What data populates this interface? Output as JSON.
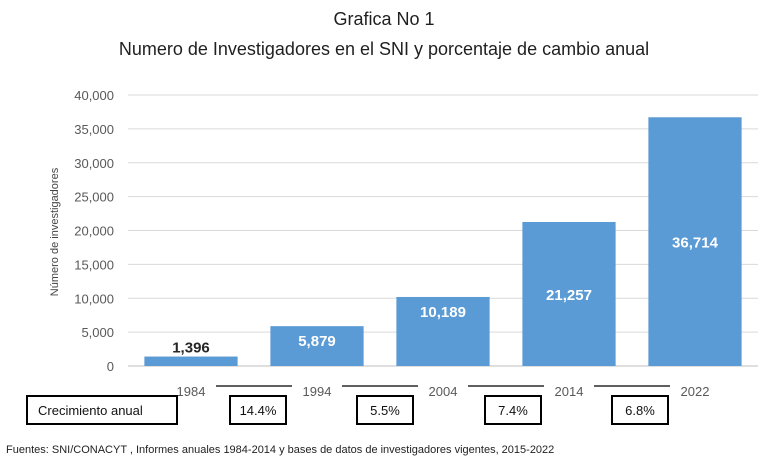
{
  "chart_data": {
    "type": "bar",
    "title": "Grafica No 1",
    "subtitle": "Numero de Investigadores en el SNI  y porcentaje de cambio anual",
    "xlabel": "",
    "ylabel": "Número de investigadores",
    "categories": [
      "1984",
      "1994",
      "2004",
      "2014",
      "2022"
    ],
    "values": [
      1396,
      5879,
      10189,
      21257,
      36714
    ],
    "data_labels": [
      "1,396",
      "5,879",
      "10,189",
      "21,257",
      "36,714"
    ],
    "ylim": [
      0,
      40000
    ],
    "yticks": [
      0,
      5000,
      10000,
      15000,
      20000,
      25000,
      30000,
      35000,
      40000
    ],
    "ytick_labels": [
      "0",
      "5,000",
      "10,000",
      "15,000",
      "20,000",
      "25,000",
      "30,000",
      "35,000",
      "40,000"
    ],
    "grid": true,
    "legend": "none",
    "bar_color": "#5b9bd5",
    "grid_color": "#d9d9d9",
    "growth": {
      "label": "Crecimiento anual",
      "values": [
        "14.4%",
        "5.5%",
        "7.4%",
        "6.8%"
      ]
    },
    "source": "Fuentes: SNI/CONACYT , Informes anuales 1984-2014 y bases de datos de investigadores vigentes, 2015-2022"
  }
}
